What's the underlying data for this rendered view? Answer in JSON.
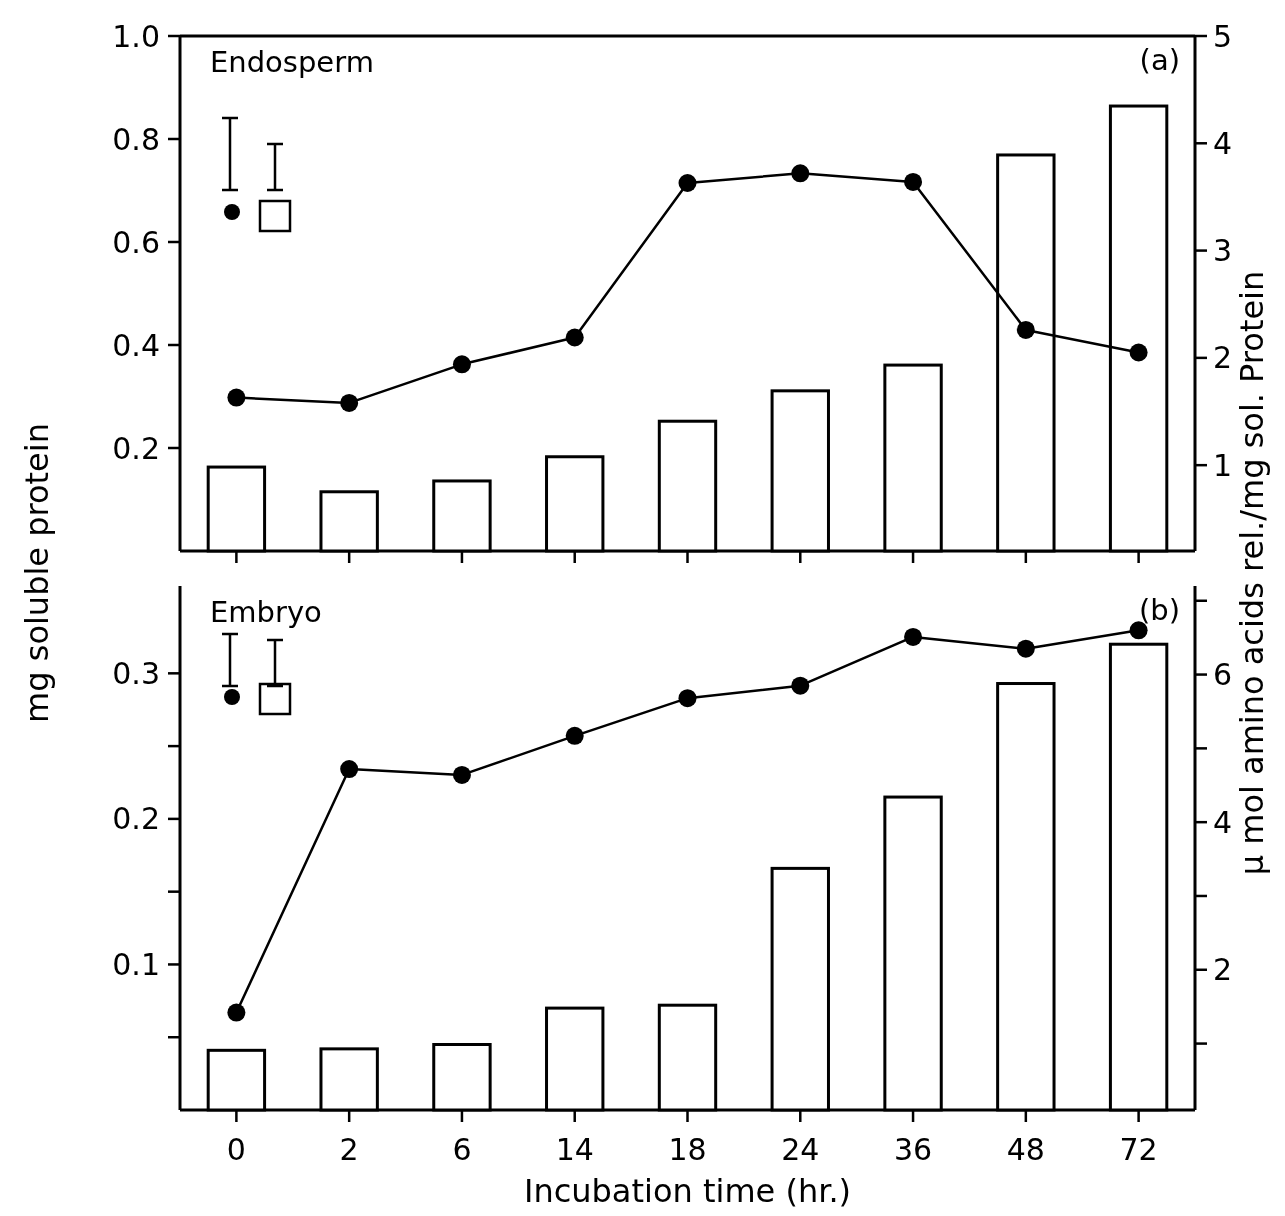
{
  "chart_data": [
    {
      "type": "bar",
      "categories": [
        "0",
        "2",
        "6",
        "14",
        "18",
        "24",
        "36",
        "48",
        "72"
      ],
      "ylabel": "mg soluble protein",
      "y2label": "μ mol amino acids rel./mg sol. Protein",
      "annotations": [
        "Endosperm",
        "(a)"
      ],
      "ylim": [
        0,
        1
      ],
      "yticks": [
        0.2,
        0.4,
        0.6,
        0.8,
        {
          "value": 1,
          "label": "1.0"
        }
      ],
      "y2lim": [
        0.2,
        5
      ],
      "y2ticks": [
        1,
        2,
        3,
        4,
        5
      ],
      "tick_labels": "y",
      "marker": "circle",
      "series": [
        {
          "color": "#000000",
          "values": [
            0.163,
            0.115,
            0.136,
            0.183,
            0.252,
            0.311,
            0.361,
            0.769,
            0.864
          ]
        },
        {
          "type": "line",
          "axis": "y2",
          "color": "#000000",
          "values": [
            1.63,
            1.58,
            1.94,
            2.19,
            3.63,
            3.72,
            3.64,
            2.26,
            2.05
          ]
        }
      ]
    },
    {
      "type": "bar",
      "categories": [
        "0",
        "2",
        "6",
        "14",
        "18",
        "24",
        "36",
        "48",
        "72"
      ],
      "xlabel": "Incubation time (hr.)",
      "annotations": [
        "Embryo",
        "(b)"
      ],
      "ylim": [
        0,
        0.36
      ],
      "yticks": [
        {
          "value": 0.05,
          "label": null
        },
        0.1,
        {
          "value": 0.15,
          "label": null
        },
        0.2,
        {
          "value": 0.25,
          "label": null
        },
        0.3
      ],
      "y2lim": [
        0.1,
        7.2
      ],
      "y2ticks": [
        {
          "value": 1,
          "label": null
        },
        2,
        {
          "value": 3,
          "label": null
        },
        4,
        {
          "value": 5,
          "label": null
        },
        6,
        {
          "value": 7,
          "label": null
        }
      ],
      "marker": "circle",
      "series": [
        {
          "color": "#000000",
          "values": [
            0.041,
            0.042,
            0.045,
            0.07,
            0.072,
            0.166,
            0.215,
            0.293,
            0.32
          ]
        },
        {
          "type": "line",
          "axis": "y2",
          "color": "#000000",
          "values": [
            1.42,
            4.72,
            4.64,
            5.17,
            5.68,
            5.85,
            6.51,
            6.35,
            6.6
          ]
        }
      ]
    }
  ]
}
